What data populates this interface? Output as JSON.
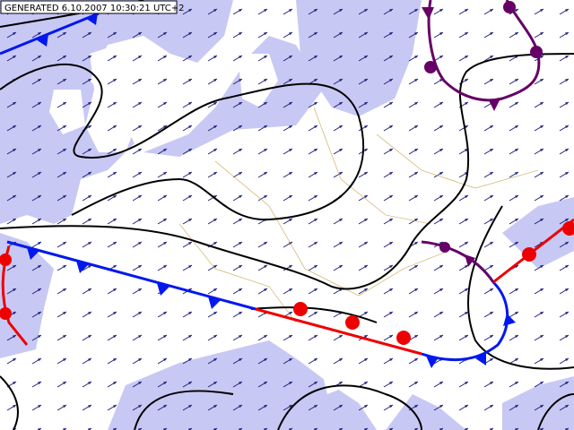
{
  "header": {
    "stamp": "GENERATED 6.10.2007 10:30:21 UTC+2"
  }
}
